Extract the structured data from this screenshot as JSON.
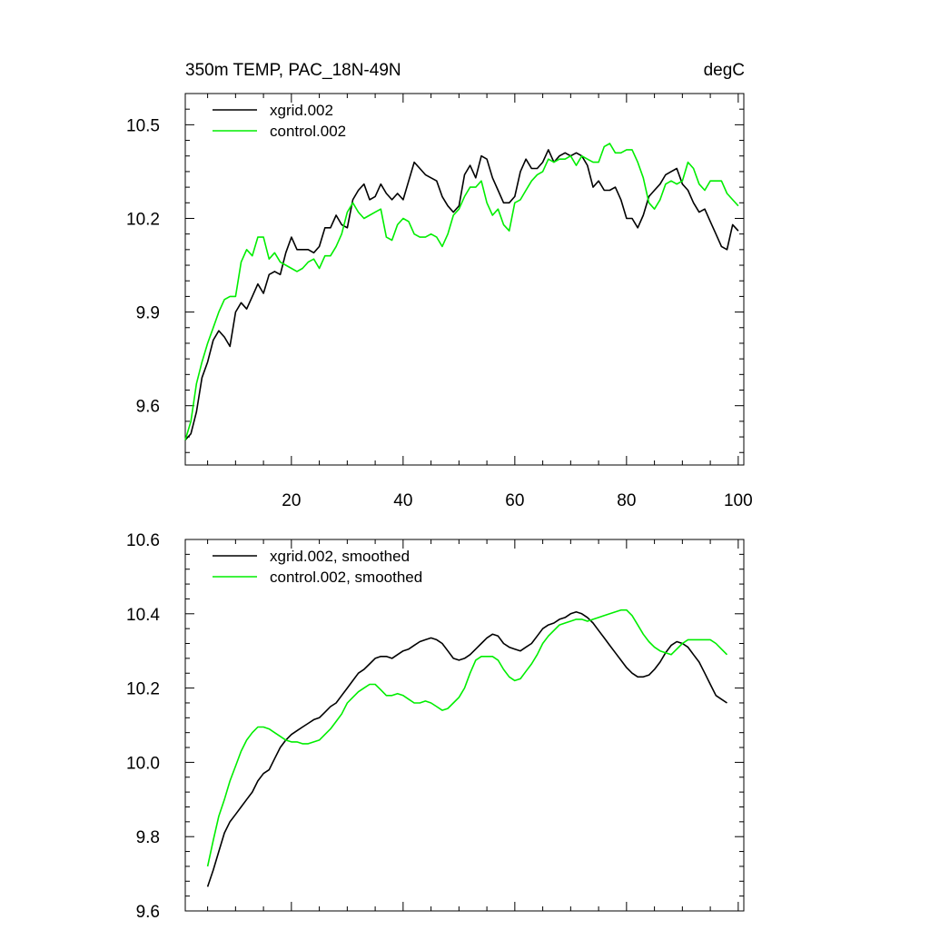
{
  "colors": {
    "xgrid": "#000000",
    "control": "#00ee00"
  },
  "chart_data": [
    {
      "type": "line",
      "title": "350m TEMP, PAC_18N-49N",
      "units": "degC",
      "xlabel": "",
      "ylabel": "",
      "xlim": [
        1,
        101
      ],
      "ylim": [
        9.41,
        10.6
      ],
      "x_ticks": [
        20,
        40,
        60,
        80,
        100
      ],
      "x_tick_labels": [
        "20",
        "40",
        "60",
        "80",
        "100"
      ],
      "x_minor_step": 5,
      "y_ticks": [
        9.6,
        9.9,
        10.2,
        10.5
      ],
      "y_tick_labels": [
        "9.6",
        "9.9",
        "10.2",
        "10.5"
      ],
      "y_minor_step": 0.05,
      "legend_position": "top-left",
      "series": [
        {
          "name": "xgrid.002",
          "color_key": "xgrid",
          "x_start": 1,
          "values": [
            9.49,
            9.51,
            9.58,
            9.69,
            9.74,
            9.81,
            9.84,
            9.82,
            9.79,
            9.9,
            9.93,
            9.91,
            9.95,
            9.99,
            9.96,
            10.02,
            10.03,
            10.02,
            10.09,
            10.14,
            10.1,
            10.1,
            10.1,
            10.09,
            10.11,
            10.17,
            10.17,
            10.21,
            10.18,
            10.17,
            10.26,
            10.29,
            10.31,
            10.26,
            10.27,
            10.31,
            10.28,
            10.26,
            10.28,
            10.26,
            10.32,
            10.38,
            10.36,
            10.34,
            10.33,
            10.32,
            10.27,
            10.24,
            10.22,
            10.24,
            10.34,
            10.37,
            10.33,
            10.4,
            10.39,
            10.33,
            10.29,
            10.25,
            10.25,
            10.27,
            10.35,
            10.39,
            10.36,
            10.36,
            10.38,
            10.42,
            10.38,
            10.4,
            10.41,
            10.4,
            10.41,
            10.4,
            10.37,
            10.3,
            10.32,
            10.29,
            10.29,
            10.3,
            10.26,
            10.2,
            10.2,
            10.17,
            10.21,
            10.27,
            10.29,
            10.31,
            10.34,
            10.35,
            10.36,
            10.31,
            10.29,
            10.25,
            10.22,
            10.23,
            10.19,
            10.15,
            10.11,
            10.1,
            10.18,
            10.16
          ]
        },
        {
          "name": "control.002",
          "color_key": "control",
          "x_start": 1,
          "values": [
            9.49,
            9.55,
            9.67,
            9.74,
            9.8,
            9.85,
            9.9,
            9.94,
            9.95,
            9.95,
            10.06,
            10.1,
            10.08,
            10.14,
            10.14,
            10.07,
            10.09,
            10.06,
            10.05,
            10.04,
            10.03,
            10.04,
            10.06,
            10.07,
            10.04,
            10.08,
            10.08,
            10.11,
            10.15,
            10.22,
            10.25,
            10.22,
            10.2,
            10.21,
            10.22,
            10.23,
            10.14,
            10.13,
            10.18,
            10.2,
            10.19,
            10.15,
            10.14,
            10.14,
            10.15,
            10.14,
            10.11,
            10.15,
            10.21,
            10.23,
            10.27,
            10.3,
            10.3,
            10.32,
            10.25,
            10.21,
            10.23,
            10.18,
            10.16,
            10.25,
            10.26,
            10.29,
            10.32,
            10.34,
            10.35,
            10.39,
            10.38,
            10.39,
            10.39,
            10.4,
            10.37,
            10.4,
            10.39,
            10.38,
            10.38,
            10.43,
            10.44,
            10.41,
            10.41,
            10.42,
            10.42,
            10.38,
            10.33,
            10.25,
            10.23,
            10.26,
            10.31,
            10.32,
            10.31,
            10.32,
            10.38,
            10.36,
            10.31,
            10.29,
            10.32,
            10.32,
            10.32,
            10.28,
            10.26,
            10.24
          ]
        }
      ]
    },
    {
      "type": "line",
      "title": "",
      "xlabel": "",
      "ylabel": "",
      "xlim": [
        1,
        101
      ],
      "ylim": [
        9.6,
        10.6
      ],
      "x_ticks": [
        20,
        40,
        60,
        80,
        100
      ],
      "x_minor_step": 5,
      "y_ticks": [
        9.6,
        9.8,
        10.0,
        10.2,
        10.4,
        10.6
      ],
      "y_tick_labels": [
        "9.6",
        "9.8",
        "10.0",
        "10.2",
        "10.4",
        "10.6"
      ],
      "y_minor_step": 0.04,
      "legend_position": "top-left",
      "series": [
        {
          "name": "xgrid.002, smoothed",
          "color_key": "xgrid",
          "x_start": 5,
          "values": [
            9.665,
            9.71,
            9.76,
            9.81,
            9.84,
            9.86,
            9.88,
            9.9,
            9.92,
            9.95,
            9.97,
            9.98,
            10.01,
            10.04,
            10.06,
            10.075,
            10.085,
            10.095,
            10.105,
            10.115,
            10.12,
            10.135,
            10.15,
            10.16,
            10.18,
            10.2,
            10.22,
            10.24,
            10.25,
            10.265,
            10.28,
            10.285,
            10.285,
            10.28,
            10.29,
            10.3,
            10.305,
            10.315,
            10.325,
            10.33,
            10.335,
            10.33,
            10.32,
            10.3,
            10.28,
            10.275,
            10.28,
            10.29,
            10.305,
            10.32,
            10.335,
            10.345,
            10.34,
            10.32,
            10.31,
            10.305,
            10.3,
            10.31,
            10.32,
            10.34,
            10.36,
            10.37,
            10.375,
            10.385,
            10.39,
            10.4,
            10.405,
            10.4,
            10.39,
            10.375,
            10.355,
            10.335,
            10.315,
            10.295,
            10.275,
            10.255,
            10.24,
            10.23,
            10.23,
            10.235,
            10.25,
            10.27,
            10.295,
            10.315,
            10.325,
            10.32,
            10.31,
            10.29,
            10.27,
            10.24,
            10.21,
            10.18,
            10.17,
            10.16
          ]
        },
        {
          "name": "control.002, smoothed",
          "color_key": "control",
          "x_start": 5,
          "values": [
            9.72,
            9.79,
            9.855,
            9.9,
            9.95,
            9.99,
            10.03,
            10.06,
            10.08,
            10.095,
            10.095,
            10.09,
            10.08,
            10.07,
            10.06,
            10.055,
            10.055,
            10.05,
            10.05,
            10.055,
            10.06,
            10.075,
            10.09,
            10.11,
            10.13,
            10.16,
            10.175,
            10.19,
            10.2,
            10.21,
            10.21,
            10.195,
            10.18,
            10.18,
            10.185,
            10.18,
            10.17,
            10.16,
            10.16,
            10.165,
            10.16,
            10.15,
            10.14,
            10.145,
            10.16,
            10.175,
            10.2,
            10.24,
            10.275,
            10.285,
            10.285,
            10.285,
            10.275,
            10.25,
            10.23,
            10.22,
            10.225,
            10.245,
            10.265,
            10.29,
            10.32,
            10.34,
            10.355,
            10.37,
            10.375,
            10.38,
            10.385,
            10.385,
            10.38,
            10.385,
            10.39,
            10.395,
            10.4,
            10.405,
            10.41,
            10.41,
            10.395,
            10.37,
            10.345,
            10.325,
            10.31,
            10.3,
            10.295,
            10.29,
            10.305,
            10.32,
            10.33,
            10.33,
            10.33,
            10.33,
            10.33,
            10.32,
            10.305,
            10.29
          ]
        }
      ]
    }
  ]
}
